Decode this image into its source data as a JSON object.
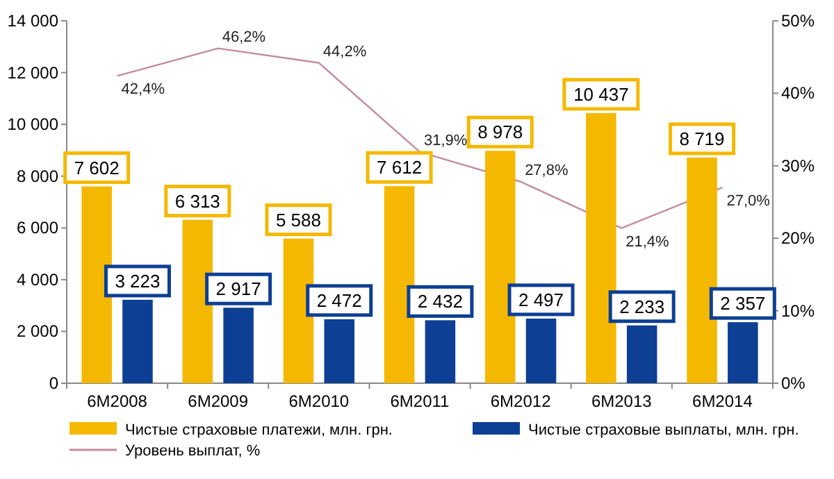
{
  "chart_data": {
    "type": "bar",
    "categories": [
      "6M2008",
      "6M2009",
      "6M2010",
      "6M2011",
      "6M2012",
      "6M2013",
      "6M2014"
    ],
    "ylim": [
      0,
      14000
    ],
    "yticks": [
      {
        "value": 0,
        "label": "0"
      },
      {
        "value": 2000,
        "label": "2 000"
      },
      {
        "value": 4000,
        "label": "4 000"
      },
      {
        "value": 6000,
        "label": "6 000"
      },
      {
        "value": 8000,
        "label": "8 000"
      },
      {
        "value": 10000,
        "label": "10 000"
      },
      {
        "value": 12000,
        "label": "12 000"
      },
      {
        "value": 14000,
        "label": "14 000"
      }
    ],
    "y2lim": [
      0,
      50
    ],
    "y2ticks": [
      {
        "value": 0,
        "label": "0%"
      },
      {
        "value": 10,
        "label": "10%"
      },
      {
        "value": 20,
        "label": "20%"
      },
      {
        "value": 30,
        "label": "30%"
      },
      {
        "value": 40,
        "label": "40%"
      },
      {
        "value": 50,
        "label": "50%"
      }
    ],
    "legend": "bottom",
    "series": [
      {
        "name": "Чистые страховые платежи, млн. грн.",
        "color": "#f5b800",
        "values": [
          7602,
          6313,
          5588,
          7612,
          8978,
          10437,
          8719
        ],
        "value_labels": [
          "7 602",
          "6 313",
          "5 588",
          "7 612",
          "8 978",
          "10 437",
          "8 719"
        ]
      },
      {
        "name": "Чистые страховые выплаты, млн. грн.",
        "color": "#0d3f94",
        "values": [
          3223,
          2917,
          2472,
          2432,
          2497,
          2233,
          2357
        ],
        "value_labels": [
          "3 223",
          "2 917",
          "2 472",
          "2 432",
          "2 497",
          "2 233",
          "2 357"
        ]
      },
      {
        "name": "Уровень выплат, %",
        "type": "line",
        "axis": "y2",
        "color": "#c58aa0",
        "values": [
          42.4,
          46.2,
          44.2,
          31.9,
          27.8,
          21.4,
          27.0
        ],
        "value_labels": [
          "42,4%",
          "46,2%",
          "44,2%",
          "31,9%",
          "27,8%",
          "21,4%",
          "27,0%"
        ]
      }
    ]
  }
}
